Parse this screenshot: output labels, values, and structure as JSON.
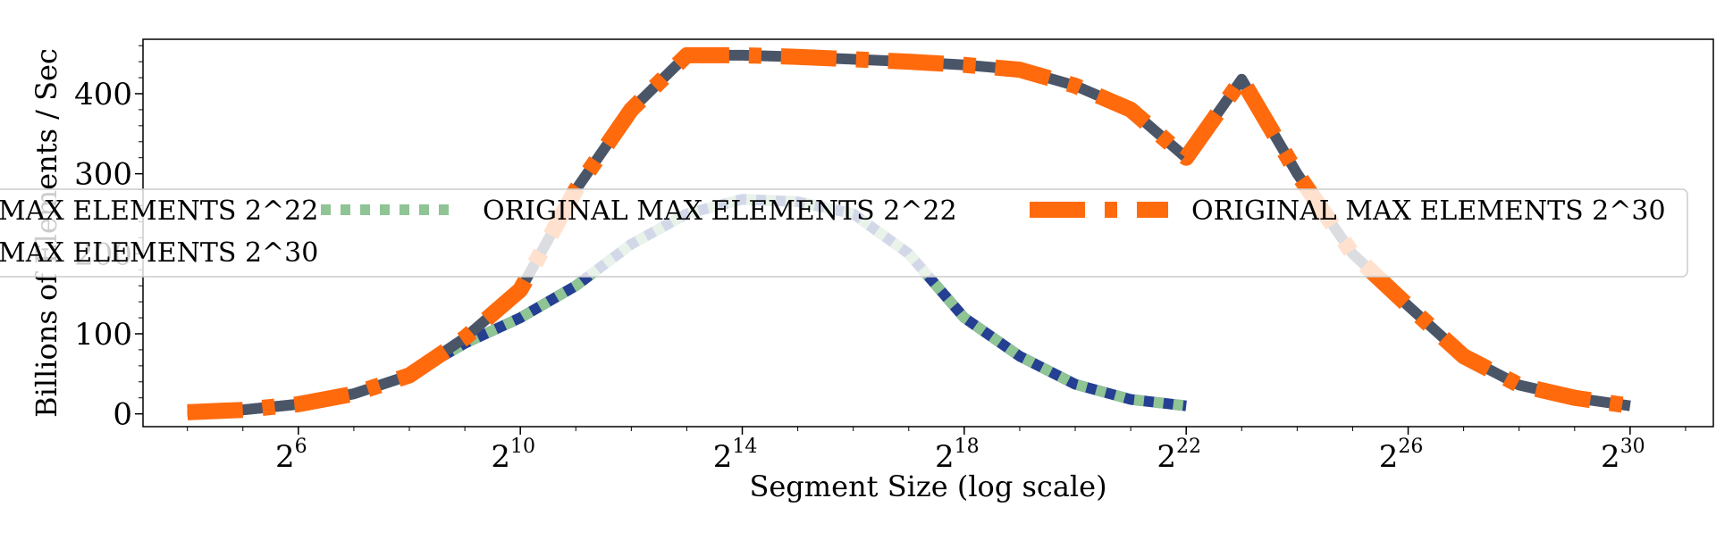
{
  "chart_data": {
    "type": "line",
    "xlabel": "Segment Size (log scale)",
    "ylabel": "Billions of Elements / Sec",
    "x_scale": "log2",
    "xlim_log2": [
      3.2,
      31.5
    ],
    "ylim": [
      -16,
      468
    ],
    "x_ticks": [
      {
        "base": "2",
        "exp": "6",
        "log2": 6
      },
      {
        "base": "2",
        "exp": "10",
        "log2": 10
      },
      {
        "base": "2",
        "exp": "14",
        "log2": 14
      },
      {
        "base": "2",
        "exp": "18",
        "log2": 18
      },
      {
        "base": "2",
        "exp": "22",
        "log2": 22
      },
      {
        "base": "2",
        "exp": "26",
        "log2": 26
      },
      {
        "base": "2",
        "exp": "30",
        "log2": 30
      }
    ],
    "y_ticks": [
      {
        "value": 0,
        "label": "0"
      },
      {
        "value": 100,
        "label": "100"
      },
      {
        "value": 200,
        "label": "200"
      },
      {
        "value": 300,
        "label": "300"
      },
      {
        "value": 400,
        "label": "400"
      }
    ],
    "grid": false,
    "legend": {
      "placement": "center",
      "columns": 3,
      "entries": [
        {
          "label": "MAX ELEMENTS 2^22",
          "series": 0,
          "row": 0,
          "col": 0
        },
        {
          "label": "ORIGINAL MAX ELEMENTS 2^22",
          "series": 1,
          "row": 0,
          "col": 1
        },
        {
          "label": "ORIGINAL MAX ELEMENTS 2^30",
          "series": 3,
          "row": 0,
          "col": 2
        },
        {
          "label": "MAX ELEMENTS 2^30",
          "series": 2,
          "row": 1,
          "col": 0
        }
      ]
    },
    "series": [
      {
        "name": "MAX ELEMENTS 2^22",
        "color": "#253f92",
        "style": "solid",
        "x_log2": [
          4,
          5,
          6,
          7,
          8,
          9,
          10,
          11,
          12,
          13,
          14,
          15,
          16,
          17,
          18,
          19,
          20,
          21,
          22
        ],
        "values": [
          2,
          5,
          12,
          25,
          48,
          88,
          120,
          160,
          212,
          250,
          268,
          265,
          250,
          200,
          120,
          72,
          37,
          18,
          10
        ]
      },
      {
        "name": "ORIGINAL MAX ELEMENTS 2^22",
        "color": "#8fc495",
        "style": "dotted",
        "x_log2": [
          4,
          5,
          6,
          7,
          8,
          9,
          10,
          11,
          12,
          13,
          14,
          15,
          16,
          17,
          18,
          19,
          20,
          21,
          22
        ],
        "values": [
          2,
          5,
          12,
          25,
          48,
          88,
          120,
          160,
          212,
          250,
          268,
          265,
          250,
          200,
          120,
          72,
          37,
          18,
          10
        ]
      },
      {
        "name": "MAX ELEMENTS 2^30",
        "color": "#4a5568",
        "style": "solid",
        "x_log2": [
          4,
          5,
          6,
          7,
          8,
          9,
          10,
          11,
          12,
          13,
          14,
          15,
          16,
          17,
          18,
          19,
          20,
          21,
          22,
          23,
          24,
          25,
          26,
          27,
          28,
          29,
          30
        ],
        "values": [
          2,
          5,
          12,
          25,
          48,
          95,
          155,
          280,
          380,
          448,
          448,
          446,
          443,
          440,
          436,
          430,
          410,
          380,
          320,
          418,
          300,
          200,
          135,
          72,
          36,
          20,
          10
        ]
      },
      {
        "name": "ORIGINAL MAX ELEMENTS 2^30",
        "color": "#ff6a0d",
        "style": "dashdot",
        "x_log2": [
          4,
          5,
          6,
          7,
          8,
          9,
          10,
          11,
          12,
          13,
          14,
          15,
          16,
          17,
          18,
          19,
          20,
          21,
          22,
          23,
          24,
          25,
          26,
          27,
          28,
          29,
          30
        ],
        "values": [
          2,
          5,
          12,
          25,
          48,
          95,
          155,
          280,
          380,
          448,
          448,
          446,
          443,
          440,
          436,
          430,
          410,
          380,
          320,
          418,
          300,
          200,
          135,
          72,
          36,
          20,
          10
        ]
      }
    ]
  }
}
